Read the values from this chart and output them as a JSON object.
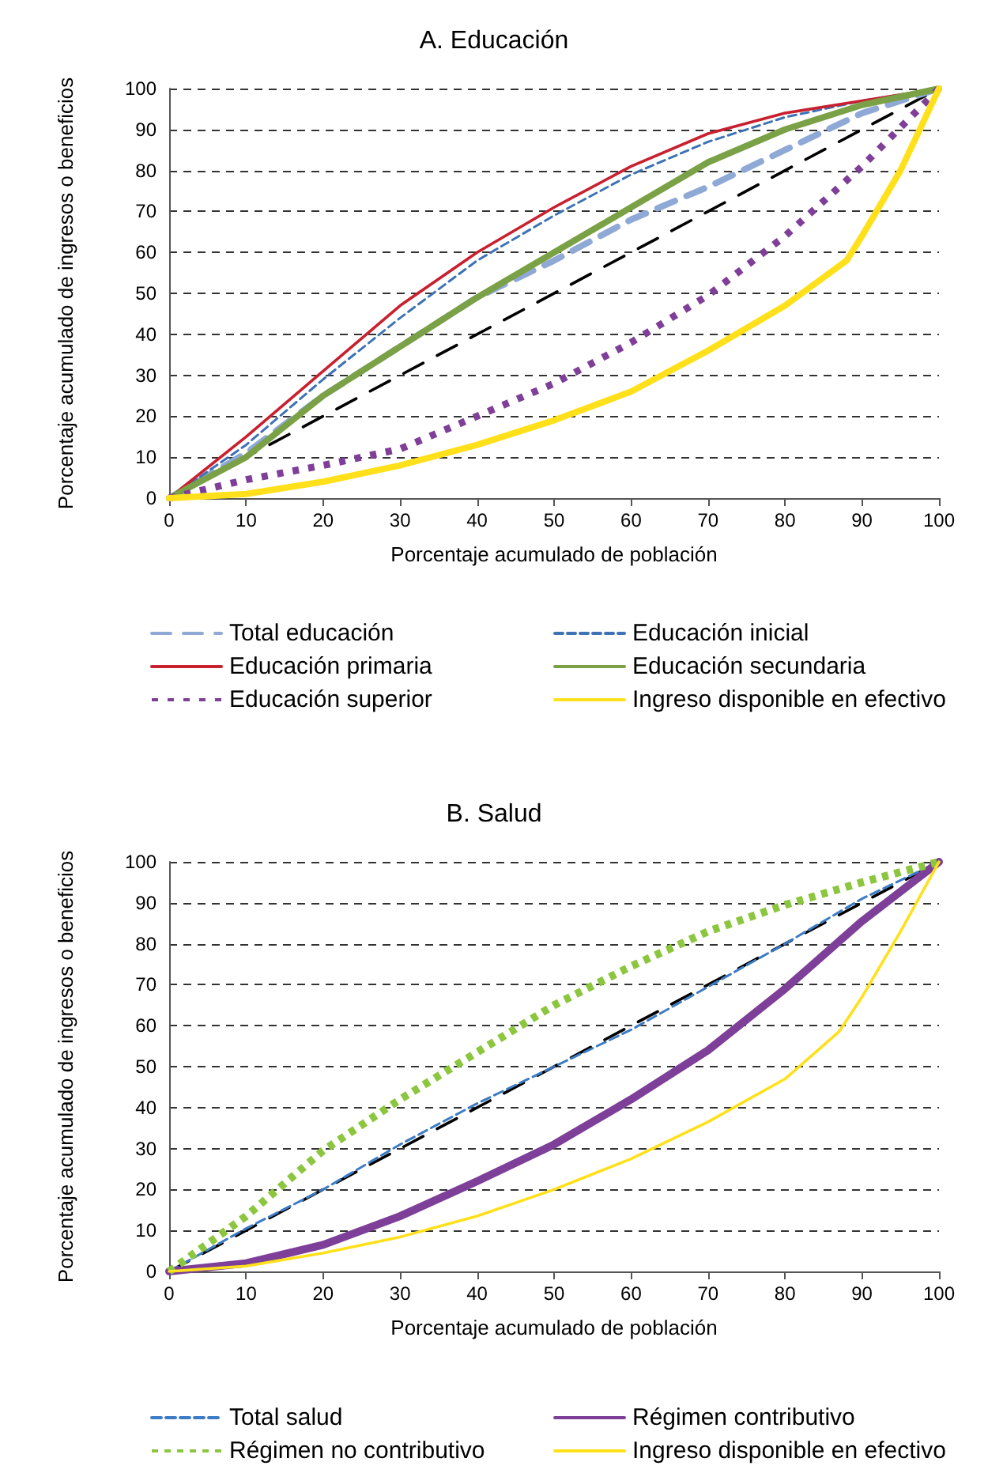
{
  "chart_data": [
    {
      "type": "line",
      "title": "A. Educación",
      "xlabel": "Porcentaje acumulado de población",
      "ylabel": "Porcentaje acumulado de ingresos o beneficios",
      "x": [
        0,
        10,
        20,
        30,
        40,
        50,
        60,
        70,
        80,
        90,
        100
      ],
      "xlim": [
        0,
        100
      ],
      "xticks": [
        0,
        10,
        20,
        30,
        40,
        50,
        60,
        70,
        80,
        90,
        100
      ],
      "ylim": [
        0,
        100
      ],
      "yticks": [
        0,
        10,
        20,
        30,
        40,
        50,
        60,
        70,
        80,
        90,
        100
      ],
      "grid": "y",
      "legend": "bottom",
      "marker": "none",
      "series": [
        {
          "name": "Total educación",
          "color": "#8ea9d6",
          "line_style": "dashed",
          "values": [
            0,
            11,
            25,
            37,
            49,
            58,
            68,
            76,
            85,
            94,
            100
          ]
        },
        {
          "name": "Educación inicial",
          "color": "#3d72b4",
          "line_style": "dashed",
          "values": [
            0,
            13,
            29,
            44,
            58,
            69,
            79,
            87,
            93,
            97,
            100
          ]
        },
        {
          "name": "Educación primaria",
          "color": "#c8202f",
          "line_style": "solid",
          "values": [
            0,
            15,
            31,
            47,
            60,
            71,
            81,
            89,
            94,
            97,
            100
          ]
        },
        {
          "name": "Educación secundaria",
          "color": "#7aa146",
          "line_style": "solid",
          "values": [
            0,
            10,
            25,
            37,
            49,
            60,
            71,
            82,
            90,
            96,
            100
          ]
        },
        {
          "name": "Educación superior",
          "color": "#7f3f98",
          "line_style": "dotted",
          "values": [
            0,
            4.5,
            8,
            12,
            20,
            28,
            38,
            49.5,
            64,
            81,
            100
          ]
        },
        {
          "name": "Ingreso disponible en efectivo",
          "color": "#ffe01a",
          "line_style": "solid",
          "x": [
            0,
            10,
            20,
            30,
            40,
            50,
            60,
            70,
            80,
            88,
            90,
            95,
            100
          ],
          "values": [
            0,
            1,
            4,
            8,
            13,
            19,
            26,
            36,
            47,
            58,
            64,
            80,
            100
          ]
        },
        {
          "color": "#000000",
          "line_style": "dashed",
          "x": [
            0,
            100
          ],
          "values": [
            0,
            100
          ]
        }
      ]
    },
    {
      "type": "line",
      "title": "B. Salud",
      "xlabel": "Porcentaje acumulado de población",
      "ylabel": "Porcentaje acumulado de ingresos o beneficios",
      "x": [
        0,
        10,
        20,
        30,
        40,
        50,
        60,
        70,
        80,
        90,
        100
      ],
      "xlim": [
        0,
        100
      ],
      "xticks": [
        0,
        10,
        20,
        30,
        40,
        50,
        60,
        70,
        80,
        90,
        100
      ],
      "ylim": [
        0,
        100
      ],
      "yticks": [
        0,
        10,
        20,
        30,
        40,
        50,
        60,
        70,
        80,
        90,
        100
      ],
      "grid": "y",
      "legend": "bottom",
      "marker": "none",
      "series": [
        {
          "name": "Total salud",
          "color": "#3d7cc4",
          "line_style": "dashed",
          "values": [
            0,
            10.5,
            20,
            31,
            41,
            50,
            59,
            69.5,
            80,
            91,
            100
          ]
        },
        {
          "name": "Régimen contributivo",
          "color": "#7d3f98",
          "line_style": "solid",
          "values": [
            0,
            2,
            6.5,
            13.5,
            22,
            31,
            42,
            54,
            69,
            85.5,
            100
          ]
        },
        {
          "name": "Régimen no contributivo",
          "color": "#8cc63f",
          "line_style": "dotted",
          "values": [
            0,
            13.5,
            29.5,
            42,
            53.5,
            65,
            74.5,
            83,
            89.5,
            95,
            100
          ]
        },
        {
          "name": "Ingreso disponible en efectivo",
          "color": "#ffe01a",
          "line_style": "solid",
          "x": [
            0,
            10,
            20,
            30,
            40,
            50,
            60,
            70,
            80,
            87,
            90,
            95,
            100
          ],
          "values": [
            0,
            1.3,
            4.5,
            8.4,
            13.5,
            20,
            27.5,
            36.5,
            47,
            58.5,
            67,
            83,
            100
          ]
        },
        {
          "color": "#000000",
          "line_style": "dashed",
          "x": [
            0,
            100
          ],
          "values": [
            0,
            100
          ]
        }
      ]
    }
  ]
}
